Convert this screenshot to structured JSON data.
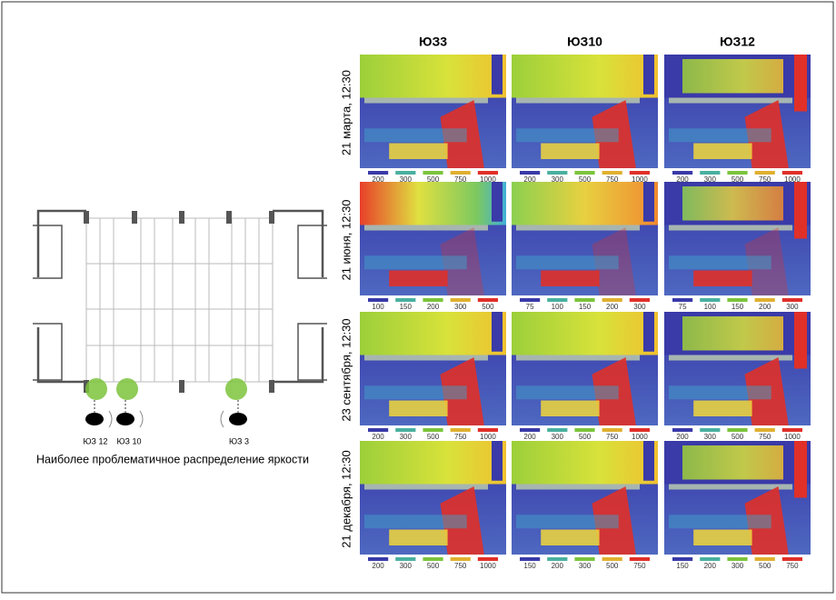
{
  "columns": [
    "ЮЗ3",
    "ЮЗ10",
    "ЮЗ12"
  ],
  "rows": [
    {
      "label": "21 марта, 12:30",
      "scales": [
        [
          200,
          300,
          500,
          750,
          1000
        ],
        [
          200,
          300,
          500,
          750,
          1000
        ],
        [
          200,
          300,
          500,
          750,
          1000
        ]
      ]
    },
    {
      "label": "21 июня, 12:30",
      "scales": [
        [
          100,
          150,
          200,
          300,
          500
        ],
        [
          75,
          100,
          150,
          200,
          300
        ],
        [
          75,
          100,
          150,
          200,
          300
        ]
      ]
    },
    {
      "label": "23 сентября, 12:30",
      "scales": [
        [
          200,
          300,
          500,
          750,
          1000
        ],
        [
          200,
          300,
          500,
          750,
          1000
        ],
        [
          200,
          300,
          500,
          750,
          1000
        ]
      ]
    },
    {
      "label": "21 декабря, 12:30",
      "scales": [
        [
          200,
          300,
          500,
          750,
          1000
        ],
        [
          150,
          200,
          300,
          500,
          750
        ],
        [
          150,
          200,
          300,
          500,
          750
        ]
      ]
    }
  ],
  "plan": {
    "labels": [
      "ЮЗ 12",
      "ЮЗ 10",
      "ЮЗ 3"
    ]
  },
  "caption": "Наиболее проблематичное распределение яркости"
}
